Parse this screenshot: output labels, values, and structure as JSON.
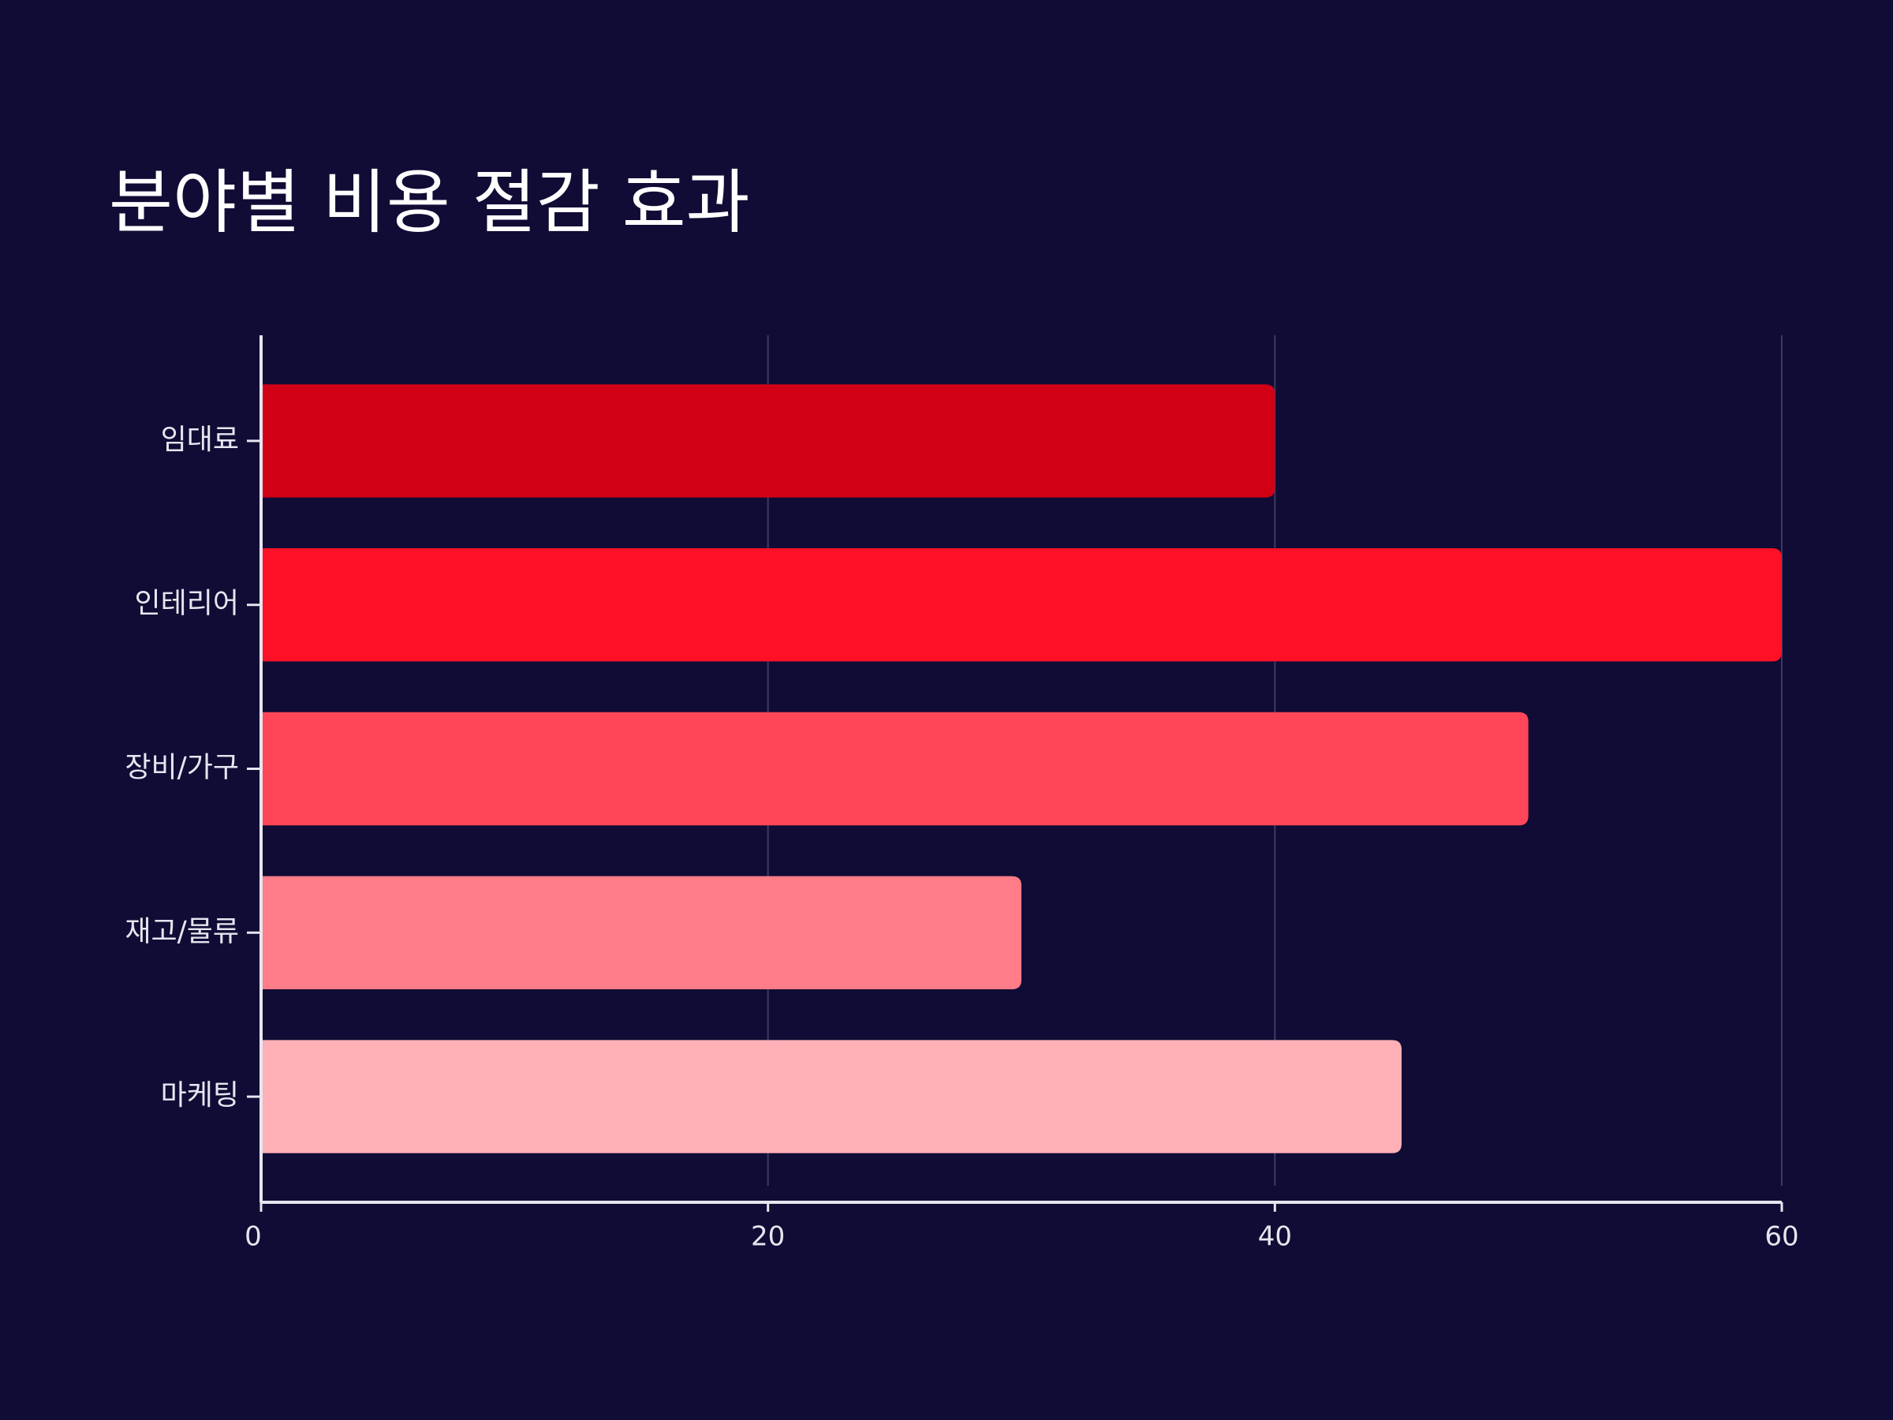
{
  "chart_data": {
    "type": "hbar",
    "title": "분야별 비용 절감 효과",
    "categories": [
      "임대료",
      "인테리어",
      "장비/가구",
      "재고/물류",
      "마케팅"
    ],
    "values": [
      40,
      60,
      50,
      30,
      45
    ],
    "colors": [
      "#d20015",
      "#fe1126",
      "#ff4658",
      "#ff7c88",
      "#ffb0b7"
    ],
    "xlim": [
      0,
      60
    ],
    "xticks": [
      0,
      20,
      40,
      60
    ],
    "grid": true
  }
}
